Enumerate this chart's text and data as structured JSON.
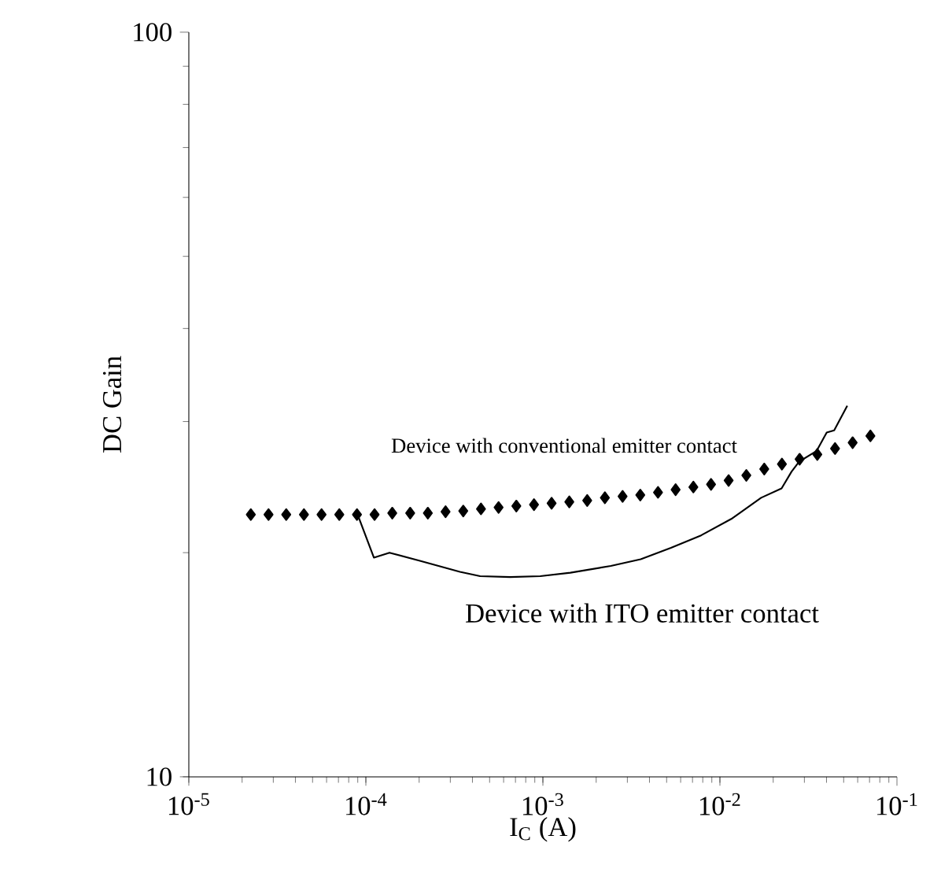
{
  "chart_data": {
    "type": "line",
    "xlabel": "I$_{C}$ (A)",
    "ylabel": "DC Gain",
    "log": "xy",
    "xlim": [
      1e-05,
      0.1
    ],
    "ylim": [
      10,
      100
    ],
    "xticks": [
      {
        "value": 1e-05,
        "label": "10$^{-5}$"
      },
      {
        "value": 0.0001,
        "label": "10$^{-4}$"
      },
      {
        "value": 0.001,
        "label": "10$^{-3}$"
      },
      {
        "value": 0.01,
        "label": "10$^{-2}$"
      },
      {
        "value": 0.1,
        "label": "10$^{-1}$"
      }
    ],
    "yticks": [
      10,
      100
    ],
    "series": [
      {
        "name": "Device with conventional emitter contact",
        "type": "scatter",
        "marker": "diamond",
        "color": "#000000",
        "x": [
          2.24e-05,
          2.82e-05,
          3.55e-05,
          4.47e-05,
          5.62e-05,
          7.08e-05,
          8.91e-05,
          0.000112,
          0.000141,
          0.000178,
          0.000224,
          0.000282,
          0.000355,
          0.000447,
          0.000562,
          0.000708,
          0.000891,
          0.00112,
          0.00141,
          0.00178,
          0.00224,
          0.00282,
          0.00355,
          0.00447,
          0.00562,
          0.00708,
          0.00891,
          0.0112,
          0.0141,
          0.0178,
          0.0224,
          0.0282,
          0.0355,
          0.0447,
          0.0562,
          0.0708
        ],
        "values": [
          22.5,
          22.5,
          22.5,
          22.5,
          22.5,
          22.5,
          22.5,
          22.5,
          22.6,
          22.6,
          22.6,
          22.7,
          22.75,
          22.9,
          23.0,
          23.1,
          23.2,
          23.3,
          23.4,
          23.5,
          23.7,
          23.8,
          23.9,
          24.1,
          24.3,
          24.5,
          24.7,
          25.0,
          25.4,
          25.9,
          26.3,
          26.7,
          27.1,
          27.6,
          28.1,
          28.7
        ]
      },
      {
        "name": "Device with ITO emitter contact",
        "marker": "none",
        "line_style": "solid",
        "color": "#000000",
        "x": [
          8.92e-05,
          0.000111,
          0.000136,
          0.000202,
          0.00034,
          0.000442,
          0.000653,
          0.000967,
          0.00143,
          0.00242,
          0.00357,
          0.00529,
          0.00783,
          0.0116,
          0.0171,
          0.0223,
          0.0254,
          0.028,
          0.0352,
          0.0401,
          0.0442,
          0.0524
        ],
        "values": [
          22.6,
          19.7,
          20.0,
          19.5,
          18.85,
          18.6,
          18.55,
          18.6,
          18.8,
          19.2,
          19.6,
          20.3,
          21.1,
          22.2,
          23.7,
          24.4,
          25.7,
          26.5,
          27.4,
          29.0,
          29.2,
          31.5
        ]
      }
    ]
  }
}
